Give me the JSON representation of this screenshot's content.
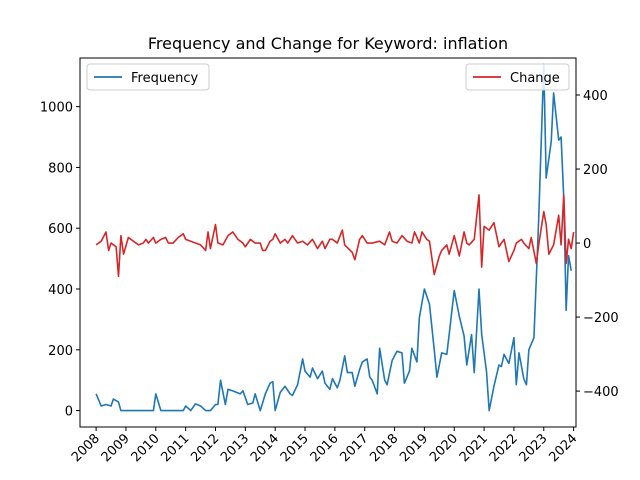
{
  "chart_data": {
    "type": "line",
    "title": "Frequency and Change for Keyword: inflation",
    "xlabel": "",
    "x_ticks": [
      "2008",
      "2009",
      "2010",
      "2011",
      "2012",
      "2013",
      "2014",
      "2015",
      "2016",
      "2017",
      "2018",
      "2019",
      "2020",
      "2021",
      "2022",
      "2023",
      "2024"
    ],
    "x_range": [
      2007.46,
      2024.08
    ],
    "y_left": {
      "label": "",
      "ticks": [
        0,
        200,
        400,
        600,
        800,
        1000
      ],
      "range": [
        -54,
        1160
      ]
    },
    "y_right": {
      "label": "",
      "ticks": [
        -400,
        -200,
        0,
        200,
        400
      ],
      "range": [
        -497,
        500
      ]
    },
    "legend": [
      {
        "name": "Frequency",
        "color": "#1f77b4",
        "placement": "top-left",
        "axis": "left"
      },
      {
        "name": "Change",
        "color": "#d62728",
        "placement": "top-right",
        "axis": "right"
      }
    ],
    "grid": false,
    "series": [
      {
        "name": "Frequency",
        "axis": "left",
        "color": "#1f77b4",
        "points": [
          [
            2008.0,
            55
          ],
          [
            2008.17,
            15
          ],
          [
            2008.33,
            20
          ],
          [
            2008.5,
            15
          ],
          [
            2008.58,
            38
          ],
          [
            2008.75,
            28
          ],
          [
            2008.83,
            0
          ],
          [
            2009.0,
            0
          ],
          [
            2009.5,
            0
          ],
          [
            2009.75,
            0
          ],
          [
            2009.92,
            0
          ],
          [
            2010.0,
            55
          ],
          [
            2010.17,
            0
          ],
          [
            2010.5,
            0
          ],
          [
            2010.75,
            0
          ],
          [
            2010.92,
            0
          ],
          [
            2011.0,
            15
          ],
          [
            2011.17,
            0
          ],
          [
            2011.33,
            22
          ],
          [
            2011.5,
            15
          ],
          [
            2011.67,
            0
          ],
          [
            2011.83,
            0
          ],
          [
            2012.0,
            20
          ],
          [
            2012.08,
            20
          ],
          [
            2012.17,
            100
          ],
          [
            2012.33,
            20
          ],
          [
            2012.42,
            70
          ],
          [
            2012.58,
            65
          ],
          [
            2012.83,
            55
          ],
          [
            2012.92,
            65
          ],
          [
            2013.08,
            20
          ],
          [
            2013.25,
            25
          ],
          [
            2013.33,
            55
          ],
          [
            2013.5,
            0
          ],
          [
            2013.67,
            55
          ],
          [
            2013.83,
            90
          ],
          [
            2013.92,
            95
          ],
          [
            2014.0,
            0
          ],
          [
            2014.17,
            60
          ],
          [
            2014.33,
            80
          ],
          [
            2014.5,
            55
          ],
          [
            2014.58,
            50
          ],
          [
            2014.75,
            85
          ],
          [
            2014.92,
            170
          ],
          [
            2015.0,
            130
          ],
          [
            2015.17,
            110
          ],
          [
            2015.25,
            140
          ],
          [
            2015.42,
            105
          ],
          [
            2015.58,
            130
          ],
          [
            2015.67,
            90
          ],
          [
            2015.83,
            70
          ],
          [
            2015.92,
            105
          ],
          [
            2016.08,
            75
          ],
          [
            2016.17,
            100
          ],
          [
            2016.33,
            180
          ],
          [
            2016.42,
            125
          ],
          [
            2016.58,
            125
          ],
          [
            2016.67,
            80
          ],
          [
            2016.83,
            135
          ],
          [
            2016.92,
            160
          ],
          [
            2017.08,
            170
          ],
          [
            2017.17,
            110
          ],
          [
            2017.25,
            100
          ],
          [
            2017.42,
            55
          ],
          [
            2017.5,
            205
          ],
          [
            2017.67,
            100
          ],
          [
            2017.75,
            85
          ],
          [
            2017.92,
            165
          ],
          [
            2018.08,
            195
          ],
          [
            2018.25,
            190
          ],
          [
            2018.33,
            90
          ],
          [
            2018.5,
            130
          ],
          [
            2018.58,
            205
          ],
          [
            2018.75,
            160
          ],
          [
            2018.83,
            305
          ],
          [
            2019.0,
            400
          ],
          [
            2019.17,
            350
          ],
          [
            2019.33,
            200
          ],
          [
            2019.42,
            110
          ],
          [
            2019.58,
            190
          ],
          [
            2019.75,
            185
          ],
          [
            2019.83,
            250
          ],
          [
            2020.0,
            395
          ],
          [
            2020.17,
            310
          ],
          [
            2020.33,
            245
          ],
          [
            2020.42,
            150
          ],
          [
            2020.58,
            250
          ],
          [
            2020.67,
            125
          ],
          [
            2020.83,
            400
          ],
          [
            2020.92,
            250
          ],
          [
            2021.08,
            130
          ],
          [
            2021.17,
            0
          ],
          [
            2021.33,
            80
          ],
          [
            2021.5,
            150
          ],
          [
            2021.58,
            145
          ],
          [
            2021.67,
            185
          ],
          [
            2021.83,
            155
          ],
          [
            2022.0,
            240
          ],
          [
            2022.08,
            85
          ],
          [
            2022.17,
            190
          ],
          [
            2022.33,
            105
          ],
          [
            2022.42,
            85
          ],
          [
            2022.5,
            200
          ],
          [
            2022.67,
            240
          ],
          [
            2022.83,
            630
          ],
          [
            2023.0,
            1140
          ],
          [
            2023.08,
            765
          ],
          [
            2023.25,
            885
          ],
          [
            2023.33,
            1045
          ],
          [
            2023.5,
            890
          ],
          [
            2023.58,
            900
          ],
          [
            2023.67,
            700
          ],
          [
            2023.75,
            330
          ],
          [
            2023.83,
            510
          ],
          [
            2023.92,
            460
          ]
        ]
      },
      {
        "name": "Change",
        "axis": "right",
        "color": "#d62728",
        "points": [
          [
            2008.0,
            -5
          ],
          [
            2008.17,
            5
          ],
          [
            2008.33,
            30
          ],
          [
            2008.42,
            -20
          ],
          [
            2008.5,
            0
          ],
          [
            2008.67,
            -10
          ],
          [
            2008.75,
            -90
          ],
          [
            2008.83,
            20
          ],
          [
            2008.92,
            -30
          ],
          [
            2009.08,
            15
          ],
          [
            2009.25,
            5
          ],
          [
            2009.42,
            -5
          ],
          [
            2009.58,
            0
          ],
          [
            2009.67,
            10
          ],
          [
            2009.75,
            0
          ],
          [
            2009.92,
            15
          ],
          [
            2010.0,
            0
          ],
          [
            2010.17,
            10
          ],
          [
            2010.33,
            15
          ],
          [
            2010.42,
            0
          ],
          [
            2010.58,
            0
          ],
          [
            2010.75,
            15
          ],
          [
            2010.92,
            25
          ],
          [
            2011.0,
            10
          ],
          [
            2011.17,
            5
          ],
          [
            2011.33,
            0
          ],
          [
            2011.5,
            -5
          ],
          [
            2011.67,
            -20
          ],
          [
            2011.75,
            30
          ],
          [
            2011.83,
            -15
          ],
          [
            2012.0,
            50
          ],
          [
            2012.08,
            0
          ],
          [
            2012.25,
            -5
          ],
          [
            2012.42,
            20
          ],
          [
            2012.58,
            30
          ],
          [
            2012.75,
            10
          ],
          [
            2012.92,
            0
          ],
          [
            2013.0,
            -10
          ],
          [
            2013.17,
            10
          ],
          [
            2013.33,
            0
          ],
          [
            2013.5,
            0
          ],
          [
            2013.58,
            -20
          ],
          [
            2013.67,
            -20
          ],
          [
            2013.83,
            5
          ],
          [
            2013.92,
            10
          ],
          [
            2014.0,
            25
          ],
          [
            2014.17,
            0
          ],
          [
            2014.33,
            10
          ],
          [
            2014.42,
            0
          ],
          [
            2014.58,
            20
          ],
          [
            2014.75,
            0
          ],
          [
            2014.92,
            5
          ],
          [
            2015.08,
            -5
          ],
          [
            2015.25,
            10
          ],
          [
            2015.42,
            -15
          ],
          [
            2015.58,
            5
          ],
          [
            2015.67,
            -15
          ],
          [
            2015.83,
            10
          ],
          [
            2015.92,
            10
          ],
          [
            2016.08,
            0
          ],
          [
            2016.25,
            35
          ],
          [
            2016.33,
            -5
          ],
          [
            2016.58,
            -25
          ],
          [
            2016.67,
            -45
          ],
          [
            2016.83,
            10
          ],
          [
            2016.92,
            20
          ],
          [
            2017.08,
            0
          ],
          [
            2017.25,
            0
          ],
          [
            2017.5,
            5
          ],
          [
            2017.67,
            -5
          ],
          [
            2017.83,
            30
          ],
          [
            2017.92,
            5
          ],
          [
            2018.08,
            0
          ],
          [
            2018.25,
            20
          ],
          [
            2018.42,
            5
          ],
          [
            2018.58,
            0
          ],
          [
            2018.67,
            30
          ],
          [
            2018.83,
            0
          ],
          [
            2018.92,
            30
          ],
          [
            2019.08,
            10
          ],
          [
            2019.17,
            5
          ],
          [
            2019.33,
            -85
          ],
          [
            2019.5,
            -35
          ],
          [
            2019.58,
            -20
          ],
          [
            2019.75,
            -5
          ],
          [
            2019.83,
            -30
          ],
          [
            2020.0,
            20
          ],
          [
            2020.17,
            -35
          ],
          [
            2020.33,
            30
          ],
          [
            2020.42,
            0
          ],
          [
            2020.5,
            -5
          ],
          [
            2020.67,
            10
          ],
          [
            2020.83,
            130
          ],
          [
            2020.92,
            -65
          ],
          [
            2021.0,
            45
          ],
          [
            2021.17,
            35
          ],
          [
            2021.33,
            55
          ],
          [
            2021.5,
            -10
          ],
          [
            2021.67,
            10
          ],
          [
            2021.83,
            -50
          ],
          [
            2022.0,
            -20
          ],
          [
            2022.08,
            0
          ],
          [
            2022.25,
            10
          ],
          [
            2022.33,
            0
          ],
          [
            2022.5,
            -15
          ],
          [
            2022.58,
            15
          ],
          [
            2022.75,
            -55
          ],
          [
            2022.83,
            -5
          ],
          [
            2023.0,
            85
          ],
          [
            2023.08,
            50
          ],
          [
            2023.17,
            -30
          ],
          [
            2023.33,
            -5
          ],
          [
            2023.5,
            75
          ],
          [
            2023.58,
            -5
          ],
          [
            2023.67,
            130
          ],
          [
            2023.75,
            -55
          ],
          [
            2023.83,
            10
          ],
          [
            2023.92,
            -15
          ],
          [
            2024.0,
            30
          ]
        ]
      }
    ]
  }
}
